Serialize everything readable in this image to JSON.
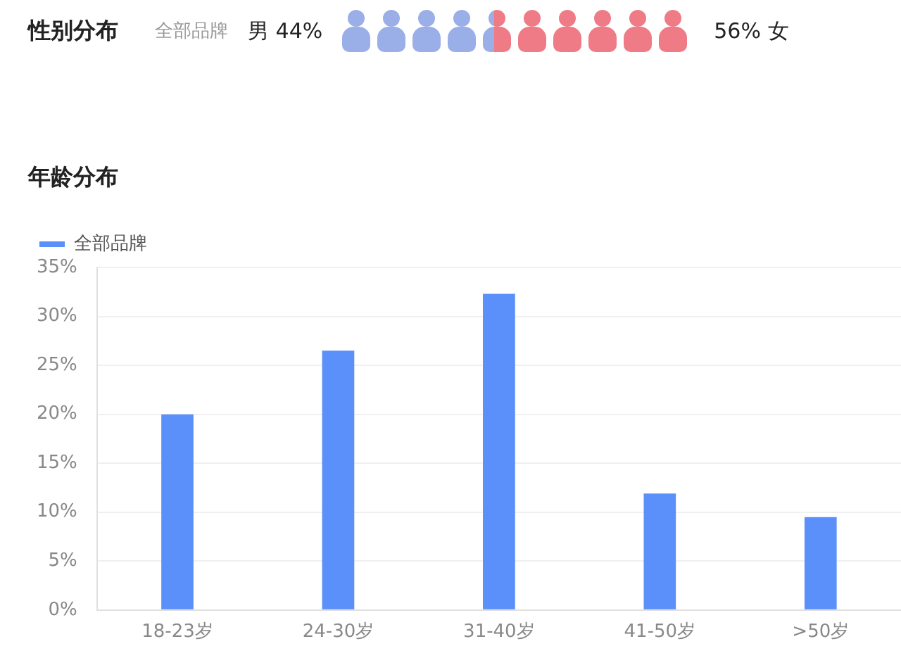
{
  "chart_data": [
    {
      "type": "other",
      "title": "性别分布",
      "subtitle": "全部品牌",
      "categories": [
        "男",
        "女"
      ],
      "values": [
        44,
        56
      ],
      "value_labels": [
        "44%",
        "56%"
      ],
      "colors": [
        "#9aaee8",
        "#ee7b85"
      ]
    },
    {
      "type": "bar",
      "title": "年龄分布",
      "categories": [
        "18-23岁",
        "24-30岁",
        "31-40岁",
        "41-50岁",
        ">50岁"
      ],
      "series": [
        {
          "name": "全部品牌",
          "color": "#5b8ff9",
          "values": [
            20.0,
            26.5,
            32.3,
            11.9,
            9.5
          ]
        }
      ],
      "ylim": [
        0,
        35
      ],
      "yticks": [
        {
          "value": 0,
          "label": "0%"
        },
        {
          "value": 5,
          "label": "5%"
        },
        {
          "value": 10,
          "label": "10%"
        },
        {
          "value": 15,
          "label": "15%"
        },
        {
          "value": 20,
          "label": "20%"
        },
        {
          "value": 25,
          "label": "25%"
        },
        {
          "value": 30,
          "label": "30%"
        },
        {
          "value": 35,
          "label": "35%"
        }
      ],
      "grid": "y",
      "legend": "top left"
    }
  ]
}
